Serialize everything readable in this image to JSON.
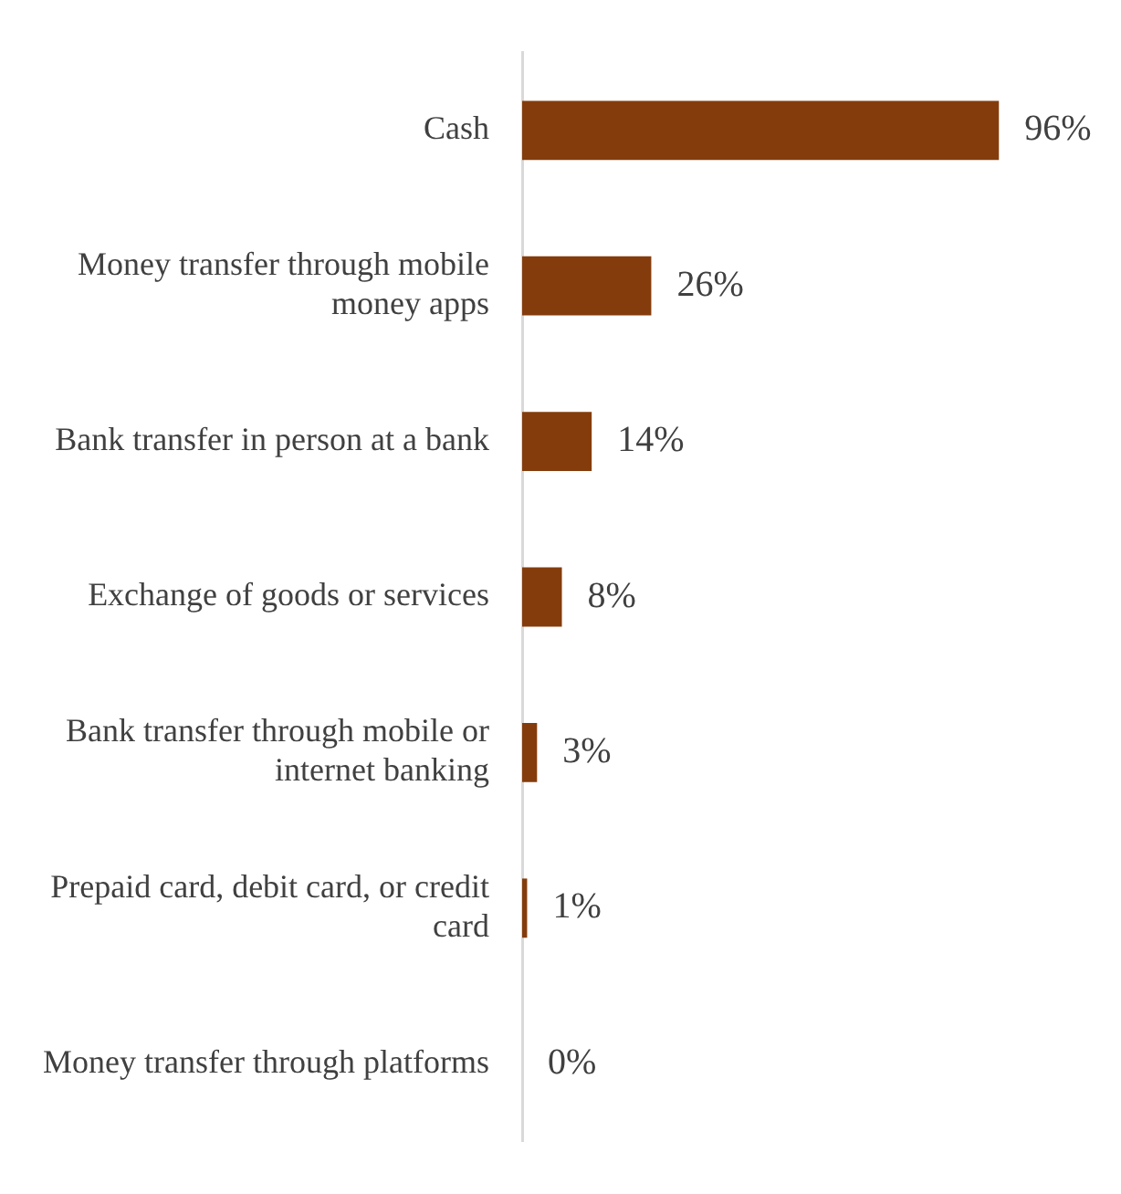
{
  "chart_data": {
    "type": "bar",
    "orientation": "horizontal",
    "categories": [
      "Cash",
      "Money transfer through mobile money apps",
      "Bank transfer in person at a bank",
      "Exchange of goods or services",
      "Bank transfer through mobile or internet banking",
      "Prepaid card, debit card, or credit card",
      "Money transfer through platforms"
    ],
    "values": [
      96,
      26,
      14,
      8,
      3,
      1,
      0
    ],
    "value_labels": [
      "96%",
      "26%",
      "14%",
      "8%",
      "3%",
      "1%",
      "0%"
    ],
    "color": "#843c0c",
    "tick_labels": "y"
  }
}
